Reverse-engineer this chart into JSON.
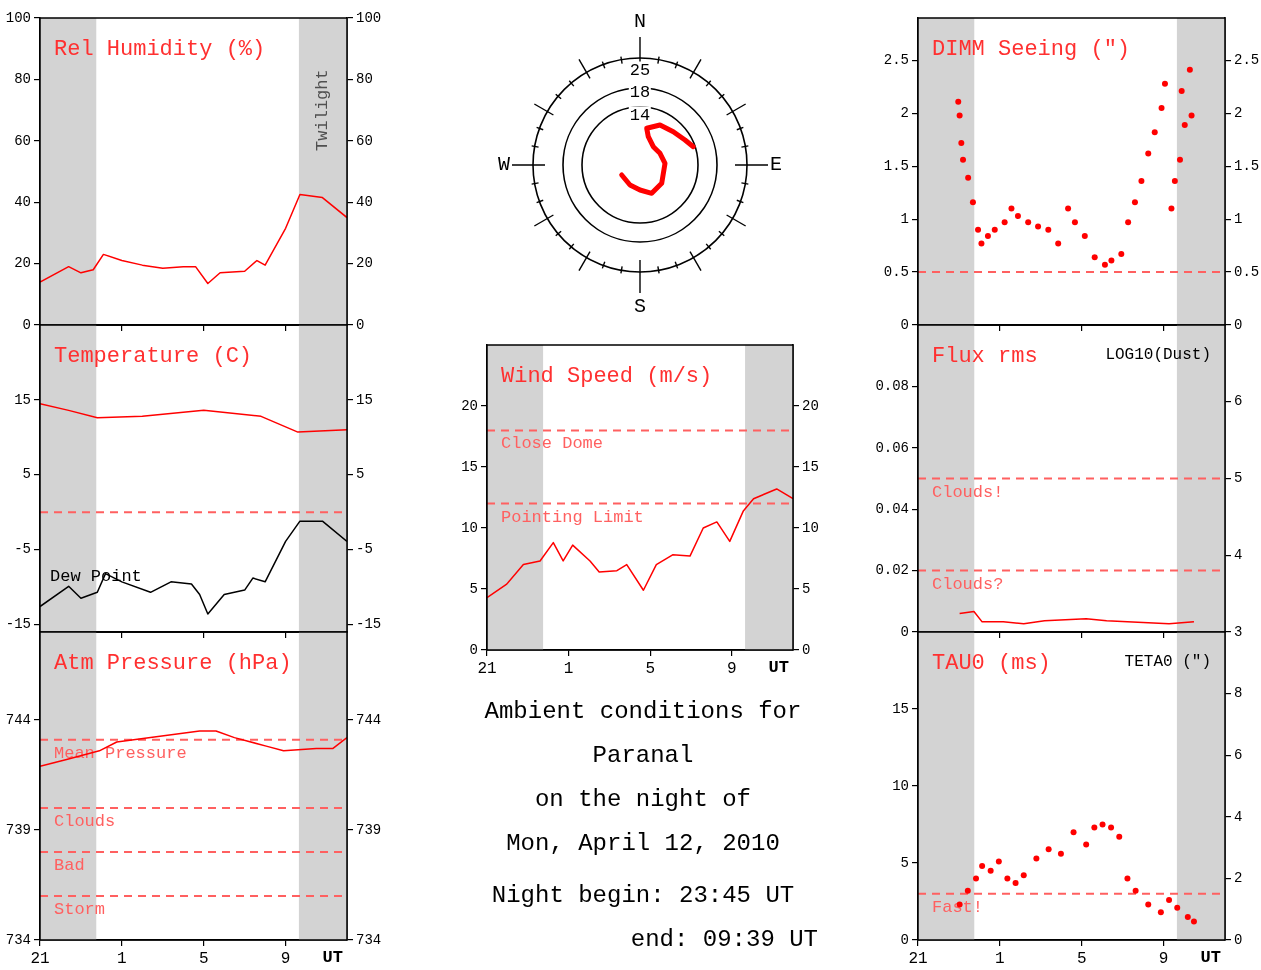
{
  "chart_data": [
    {
      "type": "line",
      "title": "Rel Humidity (%)",
      "xlim": [
        "2010-04-12T21:00",
        "2010-04-13T12:00"
      ],
      "xticks": [
        {
          "value": "2010-04-12T21:00",
          "label": null
        },
        {
          "value": "2010-04-13T01:00",
          "label": null
        },
        {
          "value": "2010-04-13T05:00",
          "label": null
        },
        {
          "value": "2010-04-13T09:00",
          "label": null
        }
      ],
      "ylim": [
        0,
        100
      ],
      "yticks": [
        0,
        20,
        40,
        60,
        80,
        100
      ],
      "y2lim": [
        0,
        100
      ],
      "y2ticks": [
        0,
        20,
        40,
        60,
        80,
        100
      ],
      "tick_labels": "y",
      "marker": "none",
      "bands": [
        {
          "axis": "x",
          "from": "2010-04-12T21:00",
          "to": "2010-04-12T23:45",
          "color": "#d3d3d3"
        },
        {
          "axis": "x",
          "from": "2010-04-13T09:39",
          "to": "2010-04-13T12:00",
          "label": "Twilight",
          "color": "#d3d3d3"
        }
      ],
      "series": [
        {
          "color": "#ff0000",
          "x": [
            "2010-04-12T21:00",
            "2010-04-12T22:24",
            "2010-04-12T23:00",
            "2010-04-12T23:36",
            "2010-04-13T00:06",
            "2010-04-13T01:00",
            "2010-04-13T02:00",
            "2010-04-13T03:00",
            "2010-04-13T04:00",
            "2010-04-13T04:36",
            "2010-04-13T05:12",
            "2010-04-13T05:48",
            "2010-04-13T07:00",
            "2010-04-13T07:36",
            "2010-04-13T08:00",
            "2010-04-13T09:00",
            "2010-04-13T09:42",
            "2010-04-13T10:48",
            "2010-04-13T12:00"
          ],
          "values": [
            14,
            19,
            17,
            18,
            23,
            21,
            19.5,
            18.5,
            19,
            19,
            13.5,
            17,
            17.5,
            21,
            19.5,
            31.5,
            42.5,
            41.5,
            35
          ]
        }
      ]
    },
    {
      "type": "line",
      "title": "Temperature (C)",
      "xlim": [
        "2010-04-12T21:00",
        "2010-04-13T12:00"
      ],
      "xticks": [
        {
          "value": "2010-04-12T21:00",
          "label": null
        },
        {
          "value": "2010-04-13T01:00",
          "label": null
        },
        {
          "value": "2010-04-13T05:00",
          "label": null
        },
        {
          "value": "2010-04-13T09:00",
          "label": null
        }
      ],
      "ylim": [
        -16,
        25
      ],
      "yticks": [
        -15,
        -5,
        5,
        15
      ],
      "y2lim": [
        -16,
        25
      ],
      "y2ticks": [
        -15,
        -5,
        5,
        15
      ],
      "tick_labels": "y",
      "marker": "none",
      "bands": [
        {
          "axis": "x",
          "from": "2010-04-12T21:00",
          "to": "2010-04-12T23:45",
          "color": "#d3d3d3"
        },
        {
          "axis": "x",
          "from": "2010-04-13T09:39",
          "to": "2010-04-13T12:00",
          "color": "#d3d3d3"
        }
      ],
      "ref_lines": [
        {
          "axis": "y",
          "value": 0,
          "color": "#ff6060",
          "line_style": "dashed"
        }
      ],
      "series": [
        {
          "color": "#ff0000",
          "x": [
            "2010-04-12T21:00",
            "2010-04-12T22:24",
            "2010-04-12T23:48",
            "2010-04-13T02:00",
            "2010-04-13T05:00",
            "2010-04-13T07:48",
            "2010-04-13T09:36",
            "2010-04-13T12:00"
          ],
          "values": [
            14.5,
            13.6,
            12.6,
            12.8,
            13.6,
            12.8,
            10.7,
            11
          ]
        },
        {
          "name": "Dew Point",
          "color": "#000000",
          "x": [
            "2010-04-12T21:00",
            "2010-04-12T22:24",
            "2010-04-12T23:00",
            "2010-04-12T23:48",
            "2010-04-13T00:12",
            "2010-04-13T01:00",
            "2010-04-13T02:24",
            "2010-04-13T03:24",
            "2010-04-13T04:24",
            "2010-04-13T04:48",
            "2010-04-13T05:12",
            "2010-04-13T06:00",
            "2010-04-13T07:00",
            "2010-04-13T07:24",
            "2010-04-13T08:00",
            "2010-04-13T09:00",
            "2010-04-13T09:42",
            "2010-04-13T10:48",
            "2010-04-13T12:00"
          ],
          "values": [
            -12.6,
            -9.9,
            -11.5,
            -10.7,
            -8.2,
            -9.3,
            -10.7,
            -9.3,
            -9.6,
            -11,
            -13.6,
            -11,
            -10.4,
            -8.8,
            -9.3,
            -3.9,
            -1.2,
            -1.2,
            -3.9
          ]
        }
      ]
    },
    {
      "type": "line",
      "title": "Atm Pressure (hPa)",
      "xlabel": "UT",
      "xlim": [
        "2010-04-12T21:00",
        "2010-04-13T12:00"
      ],
      "xticks": [
        {
          "value": "2010-04-12T21:00",
          "label": "21"
        },
        {
          "value": "2010-04-13T01:00",
          "label": "1"
        },
        {
          "value": "2010-04-13T05:00",
          "label": "5"
        },
        {
          "value": "2010-04-13T09:00",
          "label": "9"
        }
      ],
      "ylim": [
        734,
        748
      ],
      "yticks": [
        734,
        739,
        744
      ],
      "y2lim": [
        734,
        748
      ],
      "y2ticks": [
        734,
        739,
        744
      ],
      "marker": "none",
      "bands": [
        {
          "axis": "x",
          "from": "2010-04-12T21:00",
          "to": "2010-04-12T23:45",
          "color": "#d3d3d3"
        },
        {
          "axis": "x",
          "from": "2010-04-13T09:39",
          "to": "2010-04-13T12:00",
          "color": "#d3d3d3"
        }
      ],
      "ref_lines": [
        {
          "axis": "y",
          "value": 743.1,
          "label": "Mean Pressure",
          "color": "#ff6060",
          "line_style": "dashed"
        },
        {
          "axis": "y",
          "value": 740,
          "label": "Clouds",
          "color": "#ff6060",
          "line_style": "dashed"
        },
        {
          "axis": "y",
          "value": 738,
          "label": "Bad",
          "color": "#ff6060",
          "line_style": "dashed"
        },
        {
          "axis": "y",
          "value": 736,
          "label": "Storm",
          "color": "#ff6060",
          "line_style": "dashed"
        }
      ],
      "series": [
        {
          "color": "#ff0000",
          "x": [
            "2010-04-12T21:00",
            "2010-04-12T22:18",
            "2010-04-12T23:54",
            "2010-04-13T00:45",
            "2010-04-13T02:24",
            "2010-04-13T04:48",
            "2010-04-13T05:36",
            "2010-04-13T06:30",
            "2010-04-13T08:06",
            "2010-04-13T08:54",
            "2010-04-13T10:30",
            "2010-04-13T11:18",
            "2010-04-13T12:00"
          ],
          "values": [
            741.9,
            742.2,
            742.6,
            743,
            743.2,
            743.5,
            743.5,
            743.2,
            742.8,
            742.6,
            742.7,
            742.7,
            743.2
          ]
        }
      ]
    },
    {
      "type": "other",
      "annotations": [
        "N",
        "E",
        "S",
        "W",
        "25",
        "18",
        "14"
      ]
    },
    {
      "type": "line",
      "title": "Wind Speed (m/s)",
      "xlabel": "UT",
      "xlim": [
        "2010-04-12T21:00",
        "2010-04-13T12:00"
      ],
      "xticks": [
        {
          "value": "2010-04-12T21:00",
          "label": "21"
        },
        {
          "value": "2010-04-13T01:00",
          "label": "1"
        },
        {
          "value": "2010-04-13T05:00",
          "label": "5"
        },
        {
          "value": "2010-04-13T09:00",
          "label": "9"
        }
      ],
      "ylim": [
        0,
        25
      ],
      "yticks": [
        0,
        5,
        10,
        15,
        20
      ],
      "y2lim": [
        0,
        25
      ],
      "y2ticks": [
        0,
        5,
        10,
        15,
        20
      ],
      "marker": "none",
      "bands": [
        {
          "axis": "x",
          "from": "2010-04-12T21:00",
          "to": "2010-04-12T23:45",
          "color": "#d3d3d3"
        },
        {
          "axis": "x",
          "from": "2010-04-13T09:39",
          "to": "2010-04-13T12:00",
          "color": "#d3d3d3"
        }
      ],
      "ref_lines": [
        {
          "axis": "y",
          "value": 18,
          "label": "Close Dome",
          "color": "#ff6060",
          "line_style": "dashed"
        },
        {
          "axis": "y",
          "value": 12,
          "label": "Pointing Limit",
          "color": "#ff6060",
          "line_style": "dashed"
        }
      ],
      "series": [
        {
          "color": "#ff0000",
          "x": [
            "2010-04-12T21:00",
            "2010-04-12T21:58",
            "2010-04-12T22:47",
            "2010-04-12T23:36",
            "2010-04-13T00:15",
            "2010-04-13T00:44",
            "2010-04-13T01:12",
            "2010-04-13T02:03",
            "2010-04-13T02:30",
            "2010-04-13T03:22",
            "2010-04-13T03:51",
            "2010-04-13T04:40",
            "2010-04-13T05:18",
            "2010-04-13T06:06",
            "2010-04-13T06:57",
            "2010-04-13T07:36",
            "2010-04-13T08:16",
            "2010-04-13T08:54",
            "2010-04-13T09:34",
            "2010-04-13T10:04",
            "2010-04-13T11:12",
            "2010-04-13T12:00"
          ],
          "values": [
            4.3,
            5.4,
            7.0,
            7.3,
            8.8,
            7.3,
            8.6,
            7.3,
            6.4,
            6.5,
            7.0,
            4.9,
            7.0,
            7.8,
            7.7,
            10,
            10.5,
            8.9,
            11.4,
            12.4,
            13.2,
            12.4
          ]
        }
      ]
    },
    {
      "type": "other",
      "annotations": [
        "Ambient conditions for",
        "Paranal",
        "on the night of",
        "Mon, April 12, 2010",
        "Night begin: 23:45 UT",
        "end: 09:39 UT"
      ]
    },
    {
      "type": "scatter",
      "title": "DIMM Seeing (\")",
      "xlim": [
        "2010-04-12T21:00",
        "2010-04-13T12:00"
      ],
      "xticks": [
        {
          "value": "2010-04-12T21:00",
          "label": null
        },
        {
          "value": "2010-04-13T01:00",
          "label": null
        },
        {
          "value": "2010-04-13T05:00",
          "label": null
        },
        {
          "value": "2010-04-13T09:00",
          "label": null
        }
      ],
      "ylim": [
        0,
        2.9
      ],
      "yticks": [
        0,
        0.5,
        1,
        1.5,
        2,
        2.5
      ],
      "y2lim": [
        0,
        2.9
      ],
      "y2ticks": [
        0,
        0.5,
        1,
        1.5,
        2,
        2.5
      ],
      "tick_labels": "y",
      "marker": "circle",
      "bands": [
        {
          "axis": "x",
          "from": "2010-04-12T21:00",
          "to": "2010-04-12T23:45",
          "color": "#d3d3d3"
        },
        {
          "axis": "x",
          "from": "2010-04-13T09:39",
          "to": "2010-04-13T12:00",
          "color": "#d3d3d3"
        }
      ],
      "ref_lines": [
        {
          "axis": "y",
          "value": 0.5,
          "color": "#ff6060",
          "line_style": "dashed"
        }
      ],
      "series": [
        {
          "color": "#ff0000",
          "x": [
            "2010-04-12T22:58",
            "2010-04-12T23:02",
            "2010-04-12T23:07",
            "2010-04-12T23:12",
            "2010-04-12T23:27",
            "2010-04-12T23:41",
            "2010-04-12T23:56",
            "2010-04-13T00:06",
            "2010-04-13T00:25",
            "2010-04-13T00:45",
            "2010-04-13T01:14",
            "2010-04-13T01:34",
            "2010-04-13T01:53",
            "2010-04-13T02:23",
            "2010-04-13T02:52",
            "2010-04-13T03:22",
            "2010-04-13T03:51",
            "2010-04-13T04:20",
            "2010-04-13T04:40",
            "2010-04-13T05:09",
            "2010-04-13T05:38",
            "2010-04-13T06:08",
            "2010-04-13T06:27",
            "2010-04-13T06:56",
            "2010-04-13T07:16",
            "2010-04-13T07:36",
            "2010-04-13T07:55",
            "2010-04-13T08:15",
            "2010-04-13T08:34",
            "2010-04-13T08:54",
            "2010-04-13T09:04",
            "2010-04-13T09:23",
            "2010-04-13T09:33",
            "2010-04-13T09:48",
            "2010-04-13T09:53",
            "2010-04-13T10:02",
            "2010-04-13T10:17",
            "2010-04-13T10:22"
          ],
          "values": [
            2.11,
            1.98,
            1.72,
            1.56,
            1.39,
            1.16,
            0.9,
            0.77,
            0.84,
            0.9,
            0.97,
            1.1,
            1.03,
            0.97,
            0.93,
            0.9,
            0.77,
            1.1,
            0.97,
            0.84,
            0.64,
            0.57,
            0.61,
            0.67,
            0.97,
            1.16,
            1.36,
            1.62,
            1.82,
            2.05,
            2.28,
            1.1,
            1.36,
            1.56,
            2.21,
            1.89,
            2.41,
            1.98
          ]
        }
      ]
    },
    {
      "type": "line",
      "title": "Flux rms",
      "y2label": "LOG10(Dust)",
      "xlim": [
        "2010-04-12T21:00",
        "2010-04-13T12:00"
      ],
      "xticks": [
        {
          "value": "2010-04-12T21:00",
          "label": null
        },
        {
          "value": "2010-04-13T01:00",
          "label": null
        },
        {
          "value": "2010-04-13T05:00",
          "label": null
        },
        {
          "value": "2010-04-13T09:00",
          "label": null
        }
      ],
      "ylim": [
        0,
        0.1
      ],
      "yticks": [
        0,
        0.02,
        0.04,
        0.06,
        0.08
      ],
      "y2lim": [
        3,
        7
      ],
      "y2ticks": [
        3,
        4,
        5,
        6
      ],
      "tick_labels": "y",
      "marker": "none",
      "bands": [
        {
          "axis": "x",
          "from": "2010-04-12T21:00",
          "to": "2010-04-12T23:45",
          "color": "#d3d3d3"
        },
        {
          "axis": "x",
          "from": "2010-04-13T09:39",
          "to": "2010-04-13T12:00",
          "color": "#d3d3d3"
        }
      ],
      "ref_lines": [
        {
          "axis": "y",
          "value": 0.05,
          "label": "Clouds!",
          "color": "#ff6060",
          "line_style": "dashed"
        },
        {
          "axis": "y",
          "value": 0.02,
          "label": "Clouds?",
          "color": "#ff6060",
          "line_style": "dashed"
        }
      ],
      "series": [
        {
          "color": "#ff0000",
          "x": [
            "2010-04-12T23:02",
            "2010-04-12T23:44",
            "2010-04-13T00:08",
            "2010-04-13T01:10",
            "2010-04-13T02:10",
            "2010-04-13T03:11",
            "2010-04-13T04:12",
            "2010-04-13T05:13",
            "2010-04-13T06:13",
            "2010-04-13T07:14",
            "2010-04-13T08:15",
            "2010-04-13T09:16",
            "2010-04-13T10:29"
          ],
          "values": [
            0.006,
            0.0067,
            0.0033,
            0.0033,
            0.0027,
            0.0037,
            0.004,
            0.0043,
            0.0037,
            0.0033,
            0.003,
            0.0027,
            0.0033
          ]
        }
      ]
    },
    {
      "type": "scatter",
      "title": "TAU0 (ms)",
      "y2label": "TETA0 (\")",
      "xlabel": "UT",
      "xlim": [
        "2010-04-12T21:00",
        "2010-04-13T12:00"
      ],
      "xticks": [
        {
          "value": "2010-04-12T21:00",
          "label": "21"
        },
        {
          "value": "2010-04-13T01:00",
          "label": "1"
        },
        {
          "value": "2010-04-13T05:00",
          "label": "5"
        },
        {
          "value": "2010-04-13T09:00",
          "label": "9"
        }
      ],
      "ylim": [
        0,
        20
      ],
      "yticks": [
        0,
        5,
        10,
        15
      ],
      "y2lim": [
        0,
        10
      ],
      "y2ticks": [
        0,
        2,
        4,
        6,
        8
      ],
      "marker": "circle",
      "bands": [
        {
          "axis": "x",
          "from": "2010-04-12T21:00",
          "to": "2010-04-12T23:45",
          "color": "#d3d3d3"
        },
        {
          "axis": "x",
          "from": "2010-04-13T09:39",
          "to": "2010-04-13T12:00",
          "color": "#d3d3d3"
        }
      ],
      "ref_lines": [
        {
          "axis": "y",
          "value": 3,
          "label": "Fast!",
          "color": "#ff6060",
          "line_style": "dashed"
        }
      ],
      "series": [
        {
          "color": "#ff0000",
          "x": [
            "2010-04-12T23:02",
            "2010-04-12T23:26",
            "2010-04-12T23:50",
            "2010-04-13T00:08",
            "2010-04-13T00:33",
            "2010-04-13T00:57",
            "2010-04-13T01:22",
            "2010-04-13T01:46",
            "2010-04-13T02:10",
            "2010-04-13T02:47",
            "2010-04-13T03:23",
            "2010-04-13T03:59",
            "2010-04-13T04:36",
            "2010-04-13T05:13",
            "2010-04-13T05:37",
            "2010-04-13T06:01",
            "2010-04-13T06:26",
            "2010-04-13T06:50",
            "2010-04-13T07:14",
            "2010-04-13T07:38",
            "2010-04-13T08:15",
            "2010-04-13T08:52",
            "2010-04-13T09:16",
            "2010-04-13T09:40",
            "2010-04-13T10:11",
            "2010-04-13T10:29"
          ],
          "values": [
            2.3,
            3.2,
            4.0,
            4.8,
            4.5,
            5.1,
            4.0,
            3.7,
            4.2,
            5.3,
            5.9,
            5.6,
            7.0,
            6.2,
            7.3,
            7.5,
            7.3,
            6.7,
            4.0,
            3.2,
            2.3,
            1.8,
            2.6,
            2.1,
            1.5,
            1.2
          ]
        }
      ]
    }
  ]
}
